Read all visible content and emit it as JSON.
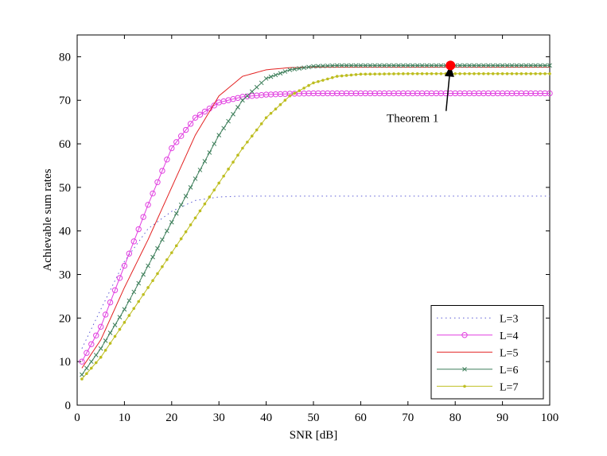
{
  "chart_data": {
    "type": "line",
    "title": "",
    "xlabel": "SNR [dB]",
    "ylabel": "Achievable sum rates",
    "xlim": [
      0,
      100
    ],
    "ylim": [
      0,
      85
    ],
    "xticks": [
      0,
      10,
      20,
      30,
      40,
      50,
      60,
      70,
      80,
      90,
      100
    ],
    "yticks": [
      0,
      10,
      20,
      30,
      40,
      50,
      60,
      70,
      80
    ],
    "grid": false,
    "legend_position": "bottom-right",
    "x": [
      1,
      5,
      10,
      15,
      20,
      25,
      30,
      35,
      40,
      45,
      50,
      55,
      60,
      70,
      80,
      90,
      100
    ],
    "series": [
      {
        "name": "L=3",
        "color": "#5b5bd6",
        "line_style": "dotted",
        "marker": "none",
        "values": [
          13,
          22,
          33,
          40.5,
          44.5,
          47,
          47.8,
          48,
          48,
          48,
          48,
          48,
          48,
          48,
          48,
          48,
          48
        ]
      },
      {
        "name": "L=4",
        "color": "#e13fe0",
        "line_style": "solid",
        "marker": "circle",
        "values": [
          10,
          18,
          32,
          46,
          59,
          66,
          69.5,
          70.8,
          71.3,
          71.5,
          71.6,
          71.6,
          71.6,
          71.6,
          71.6,
          71.6,
          71.6
        ]
      },
      {
        "name": "L=5",
        "color": "#e32222",
        "line_style": "solid",
        "marker": "none",
        "values": [
          8.5,
          15,
          27,
          38,
          50,
          62,
          71,
          75.5,
          77,
          77.5,
          77.6,
          77.6,
          77.6,
          77.6,
          77.6,
          77.6,
          77.6
        ]
      },
      {
        "name": "L=6",
        "color": "#3e7f5b",
        "line_style": "solid",
        "marker": "x",
        "values": [
          7,
          13,
          22,
          32,
          42,
          52,
          62,
          70,
          75,
          77,
          77.8,
          78,
          78,
          78,
          78,
          78,
          78
        ]
      },
      {
        "name": "L=7",
        "color": "#bdbd1f",
        "line_style": "solid",
        "marker": "dot",
        "values": [
          6,
          11,
          19,
          27,
          35,
          43,
          51,
          59,
          66,
          71,
          74,
          75.5,
          76,
          76.1,
          76.1,
          76.1,
          76.1
        ]
      }
    ],
    "annotations": [
      {
        "text": "Theorem 1",
        "point": [
          79,
          78
        ],
        "text_at": [
          71,
          65
        ],
        "color": "#ff0000"
      }
    ]
  }
}
